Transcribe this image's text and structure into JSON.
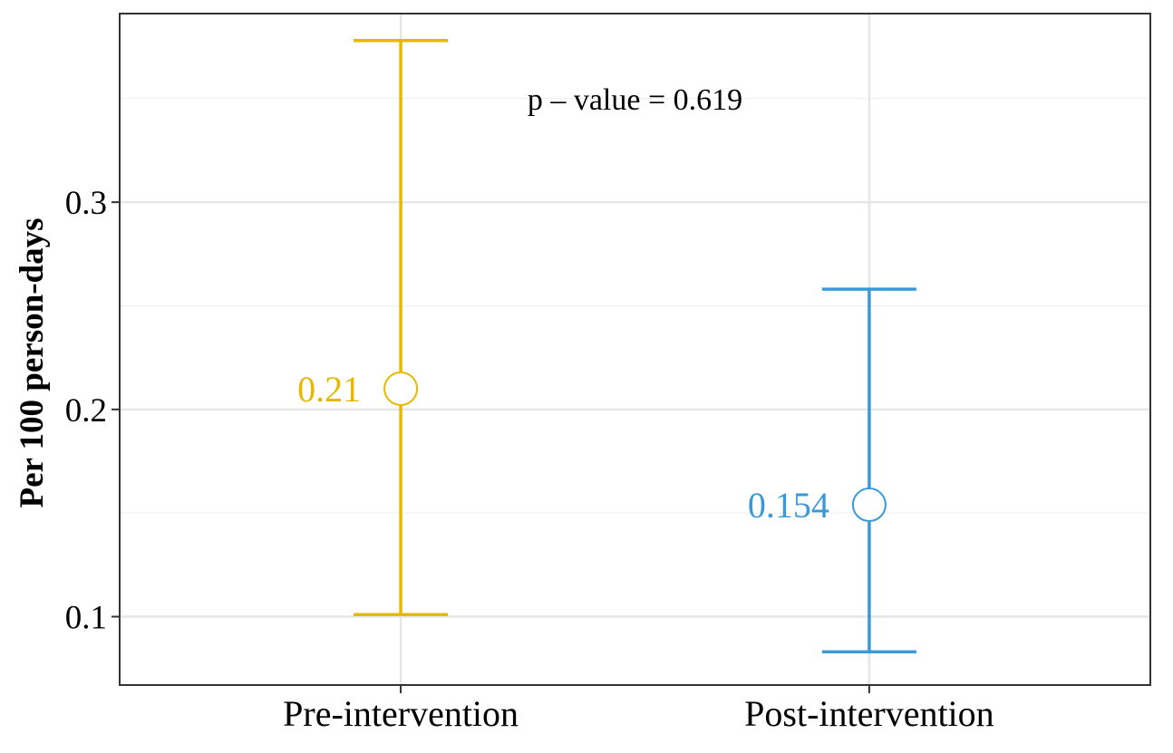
{
  "chart_data": {
    "type": "errorbar",
    "title": "",
    "xlabel": "",
    "ylabel": "Per 100 person-days",
    "ylim": [
      0.067,
      0.391
    ],
    "y_ticks": [
      0.1,
      0.2,
      0.3
    ],
    "y_tick_labels": [
      "0.1",
      "0.2",
      "0.3"
    ],
    "grid": true,
    "categories": [
      "Pre-intervention",
      "Post-intervention"
    ],
    "points": [
      {
        "category": "Pre-intervention",
        "estimate": 0.21,
        "lower": 0.101,
        "upper": 0.378,
        "label": "0.21",
        "color": "#E6B800"
      },
      {
        "category": "Post-intervention",
        "estimate": 0.154,
        "lower": 0.083,
        "upper": 0.258,
        "label": "0.154",
        "color": "#3A9AD9"
      }
    ],
    "annotations": [
      {
        "text": "p – value = 0.619",
        "x": 1.5,
        "y": 0.35
      }
    ]
  }
}
